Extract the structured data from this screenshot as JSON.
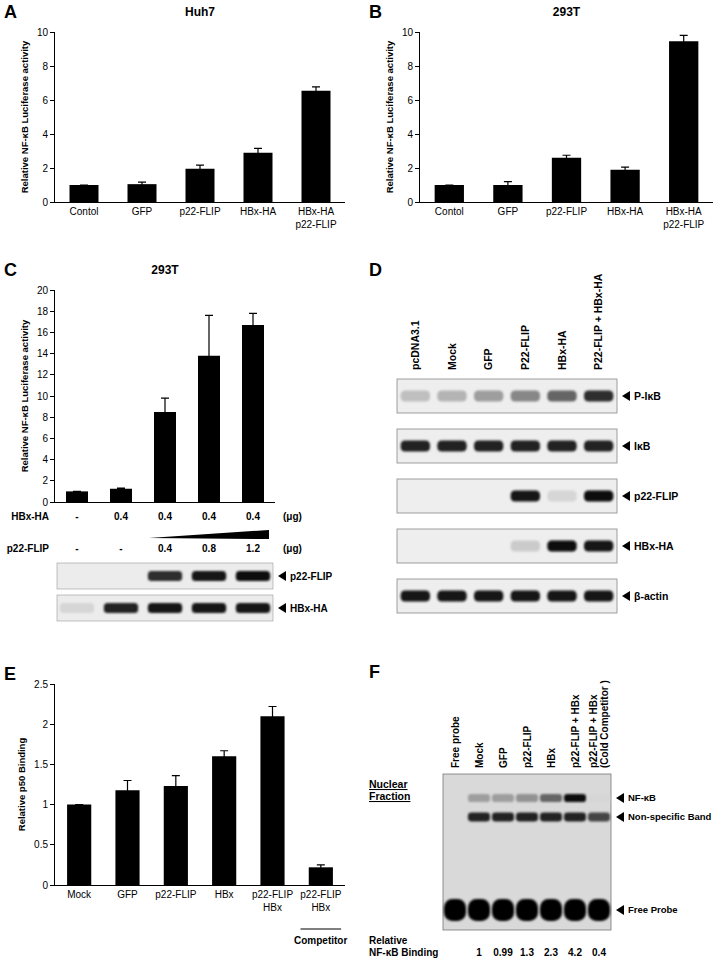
{
  "chart_data": [
    {
      "type": "bar",
      "panel": "A",
      "title": "Huh7",
      "y_label": "Relative NF-κB Luciferase activity",
      "categories": [
        "Contol",
        "GFP",
        "p22-FLIP",
        "HBx-HA",
        "HBx-HA\np22-FLIP"
      ],
      "values": [
        1,
        1.05,
        1.95,
        2.9,
        6.55
      ],
      "errors": [
        0,
        0.12,
        0.22,
        0.25,
        0.22
      ],
      "color": "#000000",
      "ylim": [
        0,
        10
      ],
      "yticks": [
        0,
        2,
        4,
        6,
        8,
        10
      ],
      "grid": false
    },
    {
      "type": "bar",
      "panel": "B",
      "title": "293T",
      "y_label": "Relative NF-κB Luciferase activity",
      "categories": [
        "Contol",
        "GFP",
        "p22-FLIP",
        "HBx-HA",
        "HBx-HA\np22-FLIP"
      ],
      "values": [
        1,
        1.0,
        2.6,
        1.9,
        9.45
      ],
      "errors": [
        0,
        0.2,
        0.15,
        0.15,
        0.35
      ],
      "color": "#000000",
      "ylim": [
        0,
        10
      ],
      "yticks": [
        0,
        2,
        4,
        6,
        8,
        10
      ],
      "grid": false
    },
    {
      "type": "bar",
      "panel": "C",
      "title": "293T",
      "y_label": "Relative NF-κB Luciferase activity",
      "categories": [
        null,
        null,
        null,
        null,
        null
      ],
      "tick_labels": "y",
      "values": [
        1,
        1.25,
        8.5,
        13.8,
        16.7
      ],
      "errors": [
        0,
        0.05,
        1.3,
        3.8,
        1.1
      ],
      "color": "#000000",
      "ylim": [
        0,
        20
      ],
      "yticks": [
        0,
        2,
        4,
        6,
        8,
        10,
        12,
        14,
        16,
        18,
        20
      ],
      "grid": false,
      "dose_rows": [
        {
          "name": "HBx-HA",
          "doses": [
            "-",
            "0.4",
            "0.4",
            "0.4",
            "0.4"
          ],
          "unit": "(μg)"
        },
        {
          "name": "p22-FLIP",
          "doses": [
            "-",
            "-",
            "0.4",
            "0.8",
            "1.2"
          ],
          "unit": "(μg)"
        }
      ],
      "blot": {
        "rows": [
          {
            "label": "p22-FLIP",
            "bands": [
              0,
              0,
              0.8,
              0.9,
              0.95
            ]
          },
          {
            "label": "HBx-HA",
            "bands": [
              0.05,
              0.85,
              0.9,
              0.9,
              0.9
            ]
          }
        ]
      }
    },
    {
      "type": "bar",
      "panel": "E",
      "y_label": "Relative p50 Binding",
      "categories": [
        "Mock",
        "GFP",
        "p22-FLIP",
        "HBx",
        "p22-FLIP\nHBx",
        "p22-FLIP\nHBx"
      ],
      "values": [
        1,
        1.18,
        1.23,
        1.6,
        2.1,
        0.22
      ],
      "errors": [
        0,
        0.12,
        0.13,
        0.07,
        0.12,
        0.03
      ],
      "color": "#000000",
      "ylim": [
        0,
        2.5
      ],
      "yticks": [
        0,
        0.5,
        1,
        1.5,
        2,
        2.5
      ],
      "grid": false,
      "annotations": [
        {
          "text": "Competitor",
          "at": 5
        }
      ]
    }
  ],
  "blots": [
    {
      "panel": "D",
      "lanes": [
        "pcDNA3.1",
        "Mock",
        "GFP",
        "P22-FLIP",
        "HBx-HA",
        "P22-FLIP + HBx-HA"
      ],
      "rows": [
        {
          "label": "P-IκB",
          "bands": [
            0.15,
            0.2,
            0.3,
            0.4,
            0.55,
            0.8
          ]
        },
        {
          "label": "IκB",
          "bands": [
            0.85,
            0.85,
            0.85,
            0.85,
            0.85,
            0.85
          ]
        },
        {
          "label": "p22-FLIP",
          "bands": [
            0,
            0,
            0,
            0.9,
            0.05,
            0.95
          ]
        },
        {
          "label": "HBx-HA",
          "bands": [
            0,
            0,
            0,
            0.1,
            0.95,
            0.9
          ]
        },
        {
          "label": "β-actin",
          "bands": [
            0.9,
            0.9,
            0.9,
            0.9,
            0.9,
            0.9
          ]
        }
      ]
    },
    {
      "panel": "F",
      "header": "Nuclear\nFraction",
      "lanes": [
        "Free probe",
        "Mock",
        "GFP",
        "p22-FLIP",
        "HBx",
        "p22-FLIP + HBx",
        "p22-FLIP + HBx\n(Cold Competitor )"
      ],
      "rows": [
        {
          "label": "NF-κB",
          "bands": [
            0,
            0.3,
            0.3,
            0.35,
            0.55,
            0.95,
            0.05
          ]
        },
        {
          "label": "Non-specific Band",
          "bands": [
            0,
            0.85,
            0.85,
            0.85,
            0.85,
            0.85,
            0.7
          ]
        },
        {
          "label": "Free Probe",
          "bands": [
            1,
            1,
            1,
            1,
            1,
            1,
            1
          ]
        }
      ],
      "footer": {
        "label": "Relative\nNF-κB Binding",
        "values": [
          null,
          "1",
          "0.99",
          "1.3",
          "2.3",
          "4.2",
          "0.4"
        ]
      }
    }
  ]
}
